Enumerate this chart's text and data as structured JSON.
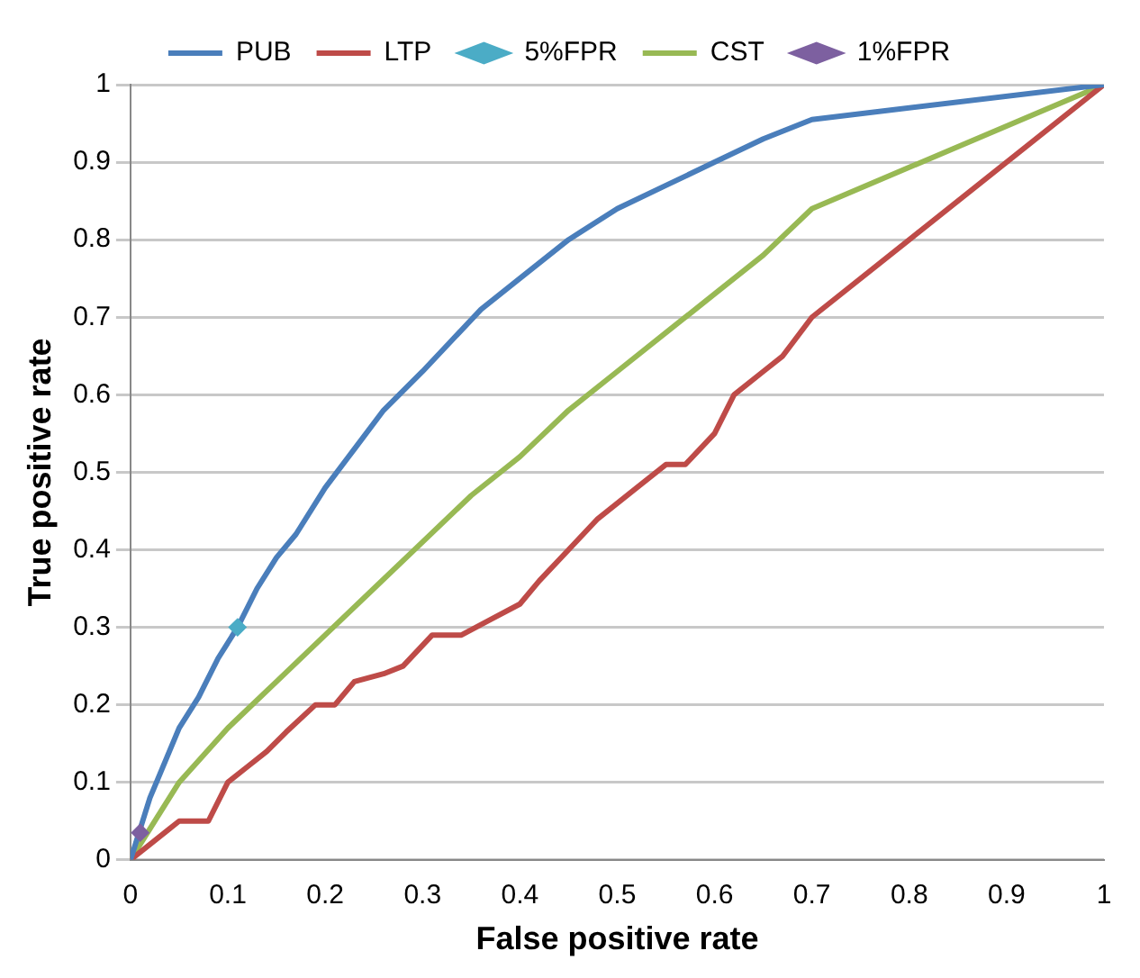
{
  "chart_data": {
    "type": "line",
    "xlabel": "False positive rate",
    "ylabel": "True positive rate",
    "xlim": [
      0,
      1
    ],
    "ylim": [
      0,
      1
    ],
    "xticks": [
      0,
      0.1,
      0.2,
      0.3,
      0.4,
      0.5,
      0.6,
      0.7,
      0.8,
      0.9,
      1
    ],
    "yticks": [
      0,
      0.1,
      0.2,
      0.3,
      0.4,
      0.5,
      0.6,
      0.7,
      0.8,
      0.9,
      1
    ],
    "grid": "y",
    "legend": "top",
    "marker": "none",
    "line_style": "solid",
    "series": [
      {
        "name": "PUB",
        "color": "#4a7ebb",
        "x": [
          0,
          0.01,
          0.02,
          0.03,
          0.05,
          0.07,
          0.09,
          0.11,
          0.13,
          0.15,
          0.17,
          0.2,
          0.23,
          0.26,
          0.3,
          0.33,
          0.36,
          0.4,
          0.45,
          0.5,
          0.55,
          0.6,
          0.65,
          0.7,
          1
        ],
        "values": [
          0,
          0.04,
          0.08,
          0.11,
          0.17,
          0.21,
          0.26,
          0.3,
          0.35,
          0.39,
          0.42,
          0.48,
          0.53,
          0.58,
          0.63,
          0.67,
          0.71,
          0.75,
          0.8,
          0.84,
          0.87,
          0.9,
          0.93,
          0.955,
          1
        ]
      },
      {
        "name": "LTP",
        "color": "#be4b48",
        "x": [
          0,
          0.02,
          0.04,
          0.05,
          0.08,
          0.1,
          0.12,
          0.14,
          0.16,
          0.19,
          0.21,
          0.23,
          0.26,
          0.28,
          0.31,
          0.34,
          0.37,
          0.4,
          0.42,
          0.45,
          0.48,
          0.52,
          0.55,
          0.57,
          0.6,
          0.62,
          0.65,
          0.67,
          0.7,
          1
        ],
        "values": [
          0,
          0.02,
          0.04,
          0.05,
          0.05,
          0.1,
          0.12,
          0.14,
          0.165,
          0.2,
          0.2,
          0.23,
          0.24,
          0.25,
          0.29,
          0.29,
          0.31,
          0.33,
          0.36,
          0.4,
          0.44,
          0.48,
          0.51,
          0.51,
          0.55,
          0.6,
          0.63,
          0.65,
          0.7,
          1
        ]
      },
      {
        "name": "5%FPR",
        "type": "scatter",
        "marker": "diamond",
        "color": "#4bacc6",
        "x": [
          0.11
        ],
        "values": [
          0.3
        ]
      },
      {
        "name": "CST",
        "color": "#98b954",
        "x": [
          0,
          0.05,
          0.1,
          0.15,
          0.2,
          0.25,
          0.3,
          0.35,
          0.4,
          0.45,
          0.5,
          0.55,
          0.6,
          0.65,
          0.7,
          1
        ],
        "values": [
          0,
          0.1,
          0.17,
          0.23,
          0.29,
          0.35,
          0.41,
          0.47,
          0.52,
          0.58,
          0.63,
          0.68,
          0.73,
          0.78,
          0.84,
          1
        ]
      },
      {
        "name": "1%FPR",
        "type": "scatter",
        "marker": "diamond",
        "color": "#7d60a0",
        "x": [
          0.01
        ],
        "values": [
          0.035
        ]
      }
    ]
  }
}
